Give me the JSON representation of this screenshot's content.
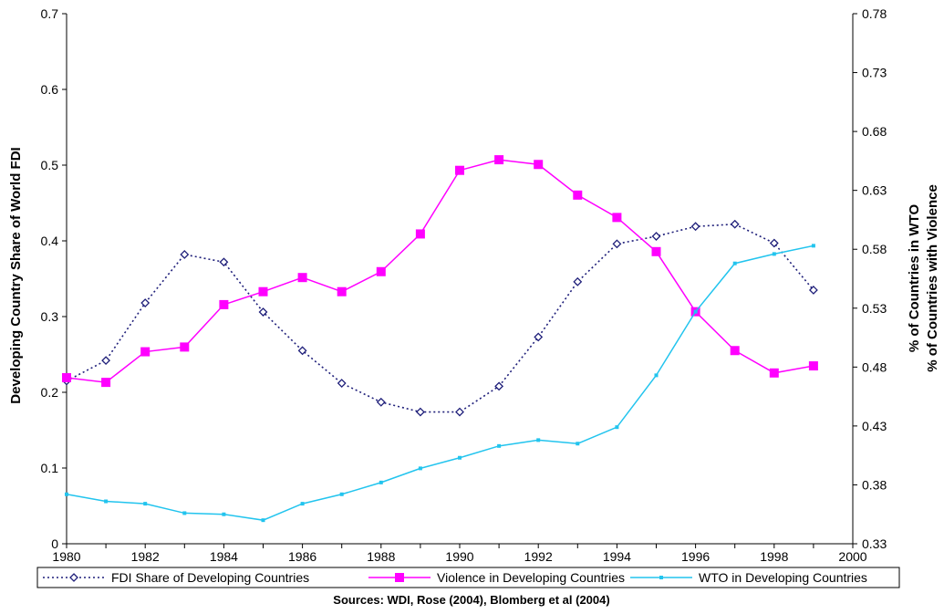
{
  "chart_data": {
    "type": "line",
    "x": [
      1980,
      1981,
      1982,
      1983,
      1984,
      1985,
      1986,
      1987,
      1988,
      1989,
      1990,
      1991,
      1992,
      1993,
      1994,
      1995,
      1996,
      1997,
      1998,
      1999
    ],
    "xlim": [
      1980,
      2000
    ],
    "x_ticks": [
      "1980",
      "1982",
      "1984",
      "1986",
      "1988",
      "1990",
      "1992",
      "1994",
      "1996",
      "1998",
      "2000"
    ],
    "ylabel_left": "Developing Country Share of World FDI",
    "ylim_left": [
      0,
      0.7
    ],
    "y_ticks_left": [
      "0",
      "0.1",
      "0.2",
      "0.3",
      "0.4",
      "0.5",
      "0.6",
      "0.7"
    ],
    "ylabel_right_1": "% of Countries in WTO",
    "ylabel_right_2": "% of Countries with Violence",
    "ylim_right": [
      0.33,
      0.78
    ],
    "y_ticks_right": [
      "0.33",
      "0.38",
      "0.43",
      "0.48",
      "0.53",
      "0.58",
      "0.63",
      "0.68",
      "0.73",
      "0.78"
    ],
    "grid": false,
    "legend_position": "bottom",
    "series": [
      {
        "name": "FDI Share of Developing Countries",
        "axis": "left",
        "color": "#1f1f7a",
        "style": "dotted",
        "marker": "diamond-open",
        "values": [
          0.215,
          0.242,
          0.318,
          0.382,
          0.372,
          0.306,
          0.255,
          0.212,
          0.187,
          0.174,
          0.174,
          0.208,
          0.273,
          0.346,
          0.396,
          0.406,
          0.419,
          0.422,
          0.397,
          0.335
        ]
      },
      {
        "name": "Violence in Developing Countries",
        "axis": "right",
        "color": "#ff00ff",
        "style": "solid",
        "marker": "square-filled",
        "values": [
          0.471,
          0.467,
          0.493,
          0.497,
          0.533,
          0.544,
          0.556,
          0.544,
          0.561,
          0.593,
          0.647,
          0.656,
          0.652,
          0.626,
          0.607,
          0.578,
          0.527,
          0.494,
          0.475,
          0.481
        ]
      },
      {
        "name": "WTO in Developing Countries",
        "axis": "right",
        "color": "#22c4ee",
        "style": "solid",
        "marker": "small-dot",
        "values": [
          0.372,
          0.366,
          0.364,
          0.356,
          0.355,
          0.35,
          0.364,
          0.372,
          0.382,
          0.394,
          0.403,
          0.413,
          0.418,
          0.415,
          0.429,
          0.473,
          0.527,
          0.568,
          0.576,
          0.583
        ]
      }
    ],
    "caption": "Sources: WDI, Rose (2004), Blomberg et al (2004)"
  }
}
